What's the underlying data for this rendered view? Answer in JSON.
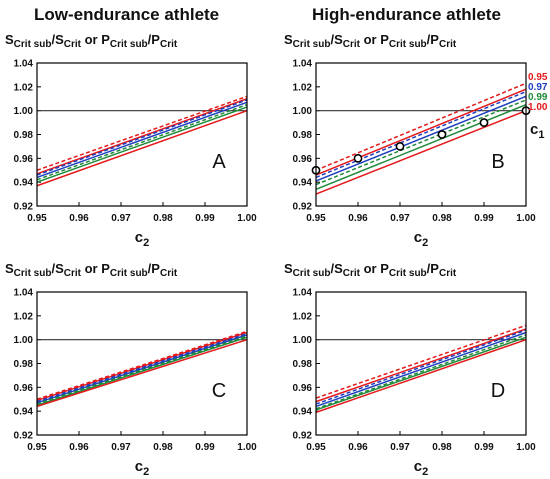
{
  "figure": {
    "col_titles": [
      "Low-endurance athlete",
      "High-endurance athlete"
    ]
  },
  "colors": {
    "c1_0.95": "#e41a1c",
    "c1_0.97": "#1f3fbf",
    "c1_0.99": "#1f8a3a",
    "c1_1.00": "#e41a1c",
    "reference": "#333333",
    "points": "#000000"
  },
  "chart_data": [
    {
      "type": "line",
      "panel": "A",
      "ylabel": {
        "t1": "S",
        "s1": "Crit sub",
        "t2": "/S",
        "s2": "Crit",
        "t3": " or P",
        "s3": "Crit sub",
        "t4": "/P",
        "s4": "Crit"
      },
      "xlabel": {
        "t": "c",
        "s": "2"
      },
      "xlim": [
        0.95,
        1.0
      ],
      "ylim": [
        0.92,
        1.04
      ],
      "xticks": [
        "0.95",
        "0.96",
        "0.97",
        "0.98",
        "0.99",
        "1.00"
      ],
      "yticks": [
        "0.92",
        "0.94",
        "0.96",
        "0.98",
        "1.00",
        "1.02",
        "1.04"
      ],
      "x": [
        0.95,
        1.0
      ],
      "reference_y": 1.0,
      "series": [
        {
          "key": "c1_0.95",
          "dash": true,
          "values": [
            0.95,
            1.012
          ]
        },
        {
          "key": "c1_0.95",
          "dash": false,
          "values": [
            0.947,
            1.01
          ]
        },
        {
          "key": "c1_0.97",
          "dash": true,
          "values": [
            0.946,
            1.009
          ]
        },
        {
          "key": "c1_0.97",
          "dash": false,
          "values": [
            0.944,
            1.007
          ]
        },
        {
          "key": "c1_0.99",
          "dash": true,
          "values": [
            0.942,
            1.005
          ]
        },
        {
          "key": "c1_0.99",
          "dash": false,
          "values": [
            0.94,
            1.003
          ]
        },
        {
          "key": "c1_1.00",
          "dash": false,
          "values": [
            0.937,
            1.0
          ]
        }
      ]
    },
    {
      "type": "line",
      "panel": "B",
      "ylabel": {
        "t1": "S",
        "s1": "Crit sub",
        "t2": "/S",
        "s2": "Crit",
        "t3": " or P",
        "s3": "Crit sub",
        "t4": "/P",
        "s4": "Crit"
      },
      "xlabel": {
        "t": "c",
        "s": "2"
      },
      "xlim": [
        0.95,
        1.0
      ],
      "ylim": [
        0.92,
        1.04
      ],
      "xticks": [
        "0.95",
        "0.96",
        "0.97",
        "0.98",
        "0.99",
        "1.00"
      ],
      "yticks": [
        "0.92",
        "0.94",
        "0.96",
        "0.98",
        "1.00",
        "1.02",
        "1.04"
      ],
      "x": [
        0.95,
        1.0
      ],
      "reference_y": 1.0,
      "legend_title": {
        "t": "c",
        "s": "1"
      },
      "legend": [
        {
          "label": "0.95",
          "key": "c1_0.95"
        },
        {
          "label": "0.97",
          "key": "c1_0.97"
        },
        {
          "label": "0.99",
          "key": "c1_0.99"
        },
        {
          "label": "1.00",
          "key": "c1_1.00"
        }
      ],
      "series": [
        {
          "key": "c1_0.95",
          "dash": true,
          "values": [
            0.95,
            1.023
          ]
        },
        {
          "key": "c1_0.95",
          "dash": false,
          "values": [
            0.946,
            1.018
          ]
        },
        {
          "key": "c1_0.97",
          "dash": true,
          "values": [
            0.944,
            1.016
          ]
        },
        {
          "key": "c1_0.97",
          "dash": false,
          "values": [
            0.941,
            1.012
          ]
        },
        {
          "key": "c1_0.99",
          "dash": true,
          "values": [
            0.938,
            1.009
          ]
        },
        {
          "key": "c1_0.99",
          "dash": false,
          "values": [
            0.934,
            1.005
          ]
        },
        {
          "key": "c1_1.00",
          "dash": false,
          "values": [
            0.93,
            1.0
          ]
        }
      ],
      "points": {
        "x": [
          0.95,
          0.96,
          0.97,
          0.98,
          0.99,
          1.0
        ],
        "y": [
          0.95,
          0.96,
          0.97,
          0.98,
          0.99,
          1.0
        ]
      }
    },
    {
      "type": "line",
      "panel": "C",
      "ylabel": {
        "t1": "S",
        "s1": "Crit sub",
        "t2": "/S",
        "s2": "Crit",
        "t3": " or P",
        "s3": "Crit sub",
        "t4": "/P",
        "s4": "Crit"
      },
      "xlabel": {
        "t": "c",
        "s": "2"
      },
      "xlim": [
        0.95,
        1.0
      ],
      "ylim": [
        0.92,
        1.04
      ],
      "xticks": [
        "0.95",
        "0.96",
        "0.97",
        "0.98",
        "0.99",
        "1.00"
      ],
      "yticks": [
        "0.92",
        "0.94",
        "0.96",
        "0.98",
        "1.00",
        "1.02",
        "1.04"
      ],
      "x": [
        0.95,
        1.0
      ],
      "reference_y": 1.0,
      "series": [
        {
          "key": "c1_0.95",
          "dash": true,
          "values": [
            0.95,
            1.007
          ]
        },
        {
          "key": "c1_0.95",
          "dash": false,
          "values": [
            0.949,
            1.006
          ]
        },
        {
          "key": "c1_0.97",
          "dash": true,
          "values": [
            0.948,
            1.005
          ]
        },
        {
          "key": "c1_0.97",
          "dash": false,
          "values": [
            0.947,
            1.004
          ]
        },
        {
          "key": "c1_0.99",
          "dash": true,
          "values": [
            0.946,
            1.003
          ]
        },
        {
          "key": "c1_0.99",
          "dash": false,
          "values": [
            0.945,
            1.002
          ]
        },
        {
          "key": "c1_1.00",
          "dash": false,
          "values": [
            0.944,
            1.0
          ]
        }
      ]
    },
    {
      "type": "line",
      "panel": "D",
      "ylabel": {
        "t1": "S",
        "s1": "Crit sub",
        "t2": "/S",
        "s2": "Crit",
        "t3": " or P",
        "s3": "Crit sub",
        "t4": "/P",
        "s4": "Crit"
      },
      "xlabel": {
        "t": "c",
        "s": "2"
      },
      "xlim": [
        0.95,
        1.0
      ],
      "ylim": [
        0.92,
        1.04
      ],
      "xticks": [
        "0.95",
        "0.96",
        "0.97",
        "0.98",
        "0.99",
        "1.00"
      ],
      "yticks": [
        "0.92",
        "0.94",
        "0.96",
        "0.98",
        "1.00",
        "1.02",
        "1.04"
      ],
      "x": [
        0.95,
        1.0
      ],
      "reference_y": 1.0,
      "series": [
        {
          "key": "c1_0.95",
          "dash": true,
          "values": [
            0.951,
            1.012
          ]
        },
        {
          "key": "c1_0.95",
          "dash": false,
          "values": [
            0.948,
            1.009
          ]
        },
        {
          "key": "c1_0.97",
          "dash": true,
          "values": [
            0.946,
            1.008
          ]
        },
        {
          "key": "c1_0.97",
          "dash": false,
          "values": [
            0.944,
            1.006
          ]
        },
        {
          "key": "c1_0.99",
          "dash": true,
          "values": [
            0.942,
            1.004
          ]
        },
        {
          "key": "c1_0.99",
          "dash": false,
          "values": [
            0.941,
            1.002
          ]
        },
        {
          "key": "c1_1.00",
          "dash": false,
          "values": [
            0.939,
            1.0
          ]
        }
      ]
    }
  ]
}
